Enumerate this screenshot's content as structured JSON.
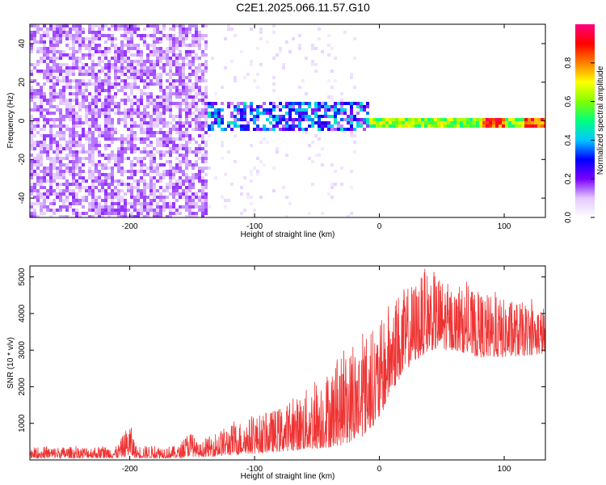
{
  "title": "C2E1.2025.066.11.57.G10",
  "chart_data": [
    {
      "type": "heatmap",
      "xlabel": "Height of straight line (km)",
      "ylabel": "Frequency (Hz)",
      "xlim": [
        -280,
        133
      ],
      "ylim": [
        -50,
        50
      ],
      "xticks": [
        -200,
        -100,
        0,
        100
      ],
      "yticks": [
        -40,
        -20,
        0,
        20,
        40
      ],
      "colorbar": {
        "label": "Normalized spectral amplitude",
        "range": [
          0,
          1
        ],
        "ticks": [
          0.0,
          0.2,
          0.4,
          0.6,
          0.8
        ],
        "tick_labels": [
          "0.0",
          "0.2",
          "0.4",
          "0.6",
          "0.8"
        ],
        "colormap": [
          "#ffffff",
          "#e3c8ff",
          "#7a00ff",
          "#0000ff",
          "#00c8ff",
          "#00ff80",
          "#80ff00",
          "#ffff00",
          "#ff8000",
          "#ff0000",
          "#ff0080"
        ]
      },
      "regions": [
        {
          "x_range": [
            -280,
            -140
          ],
          "freq_range": [
            -50,
            50
          ],
          "amplitude": 0.1
        },
        {
          "x_range": [
            -140,
            -20
          ],
          "freq_range": [
            -50,
            50
          ],
          "amplitude": 0.03
        },
        {
          "x_range": [
            -140,
            -10
          ],
          "freq_range": [
            -5,
            10
          ],
          "amplitude": 0.35
        },
        {
          "x_range": [
            -10,
            133
          ],
          "freq_range": [
            -2,
            3
          ],
          "amplitude": 0.6
        }
      ]
    },
    {
      "type": "line",
      "xlabel": "Height of straight line (km)",
      "ylabel": "SNR (10 * v/v)",
      "xlim": [
        -280,
        133
      ],
      "ylim": [
        0,
        5300
      ],
      "xticks": [
        -200,
        -100,
        0,
        100
      ],
      "yticks": [
        1000,
        2000,
        3000,
        4000,
        5000
      ],
      "series": [
        {
          "color": "#ee3333",
          "envelope": [
            {
              "x": -280,
              "lo": 50,
              "hi": 350
            },
            {
              "x": -210,
              "lo": 50,
              "hi": 380
            },
            {
              "x": -200,
              "lo": 100,
              "hi": 1050
            },
            {
              "x": -195,
              "lo": 50,
              "hi": 400
            },
            {
              "x": -160,
              "lo": 50,
              "hi": 380
            },
            {
              "x": -152,
              "lo": 100,
              "hi": 850
            },
            {
              "x": -145,
              "lo": 80,
              "hi": 420
            },
            {
              "x": -130,
              "lo": 100,
              "hi": 800
            },
            {
              "x": -110,
              "lo": 150,
              "hi": 1100
            },
            {
              "x": -90,
              "lo": 200,
              "hi": 1300
            },
            {
              "x": -70,
              "lo": 250,
              "hi": 1600
            },
            {
              "x": -50,
              "lo": 300,
              "hi": 2200
            },
            {
              "x": -30,
              "lo": 400,
              "hi": 2800
            },
            {
              "x": -15,
              "lo": 600,
              "hi": 3400
            },
            {
              "x": 0,
              "lo": 1100,
              "hi": 3700
            },
            {
              "x": 10,
              "lo": 1900,
              "hi": 4500
            },
            {
              "x": 25,
              "lo": 2600,
              "hi": 4800
            },
            {
              "x": 40,
              "lo": 3000,
              "hi": 5250
            },
            {
              "x": 60,
              "lo": 3000,
              "hi": 4700
            },
            {
              "x": 80,
              "lo": 2800,
              "hi": 4600
            },
            {
              "x": 100,
              "lo": 2800,
              "hi": 4400
            },
            {
              "x": 133,
              "lo": 2900,
              "hi": 4200
            }
          ]
        }
      ]
    }
  ]
}
